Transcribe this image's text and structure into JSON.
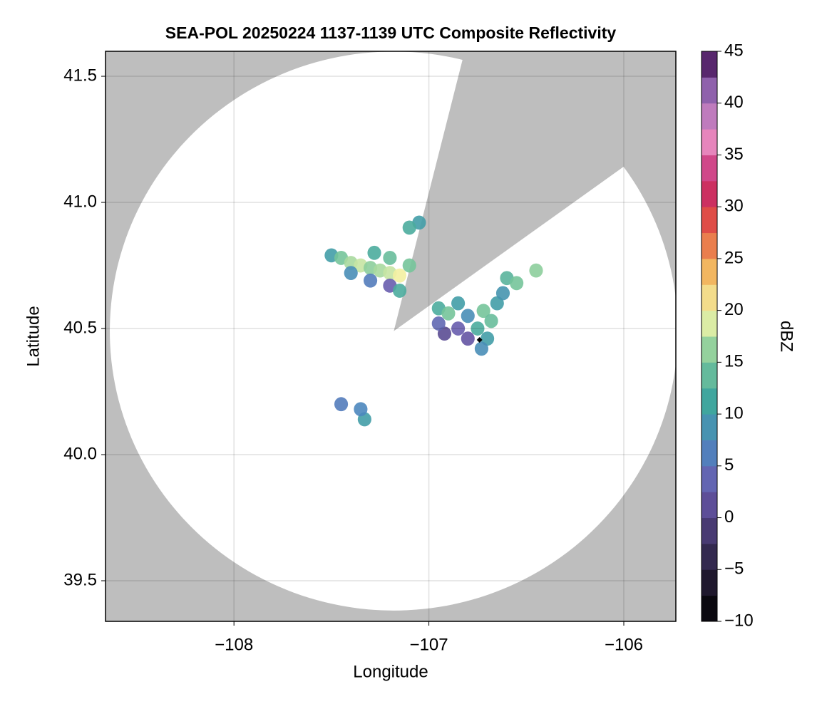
{
  "chart_data": {
    "type": "radar",
    "title": "SEA-POL 20250224 1137-1139 UTC Composite Reflectivity",
    "x_label": "Longitude",
    "y_label": "Latitude",
    "xlim": [
      -108.659,
      -105.733
    ],
    "ylim": [
      39.339,
      41.599
    ],
    "xticks": [
      {
        "value": -108,
        "label": "−108"
      },
      {
        "value": -107,
        "label": "−107"
      },
      {
        "value": -106,
        "label": "−106"
      }
    ],
    "yticks": [
      {
        "value": 39.5,
        "label": "39.5"
      },
      {
        "value": 40,
        "label": "40.0"
      },
      {
        "value": 40.5,
        "label": "40.5"
      },
      {
        "value": 41,
        "label": "41.0"
      },
      {
        "value": 41.5,
        "label": "41.5"
      }
    ],
    "grid": true,
    "background_color": "#bebebe",
    "radar": {
      "lon": -107.18,
      "lat": 40.49,
      "range_km": 123,
      "blocked_azimuth": [
        14,
        54
      ]
    },
    "marker": {
      "lon": -106.74,
      "lat": 40.455,
      "color": "#000000"
    },
    "echoes": {
      "lon": [
        -107.5,
        -107.45,
        -107.4,
        -107.35,
        -107.3,
        -107.25,
        -107.2,
        -107.15,
        -107.4,
        -107.3,
        -107.2,
        -107.15,
        -107.28,
        -107.2,
        -107.1,
        -107.05,
        -107.1,
        -106.95,
        -106.9,
        -106.85,
        -106.8,
        -106.72,
        -106.68,
        -106.75,
        -106.85,
        -106.92,
        -106.8,
        -106.7,
        -106.73,
        -106.95,
        -106.65,
        -107.33,
        -107.35,
        -107.45,
        -106.6,
        -106.55,
        -106.45,
        -106.62
      ],
      "lat": [
        40.79,
        40.78,
        40.76,
        40.75,
        40.74,
        40.73,
        40.72,
        40.71,
        40.72,
        40.69,
        40.67,
        40.65,
        40.8,
        40.78,
        40.75,
        40.92,
        40.9,
        40.58,
        40.56,
        40.6,
        40.55,
        40.57,
        40.53,
        40.5,
        40.5,
        40.48,
        40.46,
        40.46,
        40.42,
        40.52,
        40.6,
        40.14,
        40.18,
        40.2,
        40.7,
        40.68,
        40.73,
        40.64
      ],
      "dbz": [
        10,
        15,
        17,
        18,
        16,
        17,
        18,
        20,
        8,
        6,
        3,
        12,
        12,
        14,
        15,
        10,
        12,
        12,
        15,
        10,
        8,
        15,
        14,
        12,
        3,
        1,
        2,
        10,
        8,
        4,
        10,
        10,
        7,
        6,
        13,
        15,
        16,
        9
      ]
    },
    "colorbar": {
      "label": "dBZ",
      "lim": [
        -10,
        45
      ],
      "step": 2.5,
      "ticks": [
        {
          "value": -10,
          "label": "−10"
        },
        {
          "value": -5,
          "label": "−5"
        },
        0,
        5,
        10,
        15,
        20,
        25,
        30,
        35,
        40,
        45
      ],
      "colormap": [
        "#000000",
        "#231b33",
        "#45386e",
        "#6a5aad",
        "#4d86bf",
        "#3fa59e",
        "#7cc79a",
        "#f3f6a8",
        "#f2b45e",
        "#e45540",
        "#c4246c",
        "#e88cc2",
        "#9a6cb8",
        "#3c0a4e"
      ]
    }
  }
}
